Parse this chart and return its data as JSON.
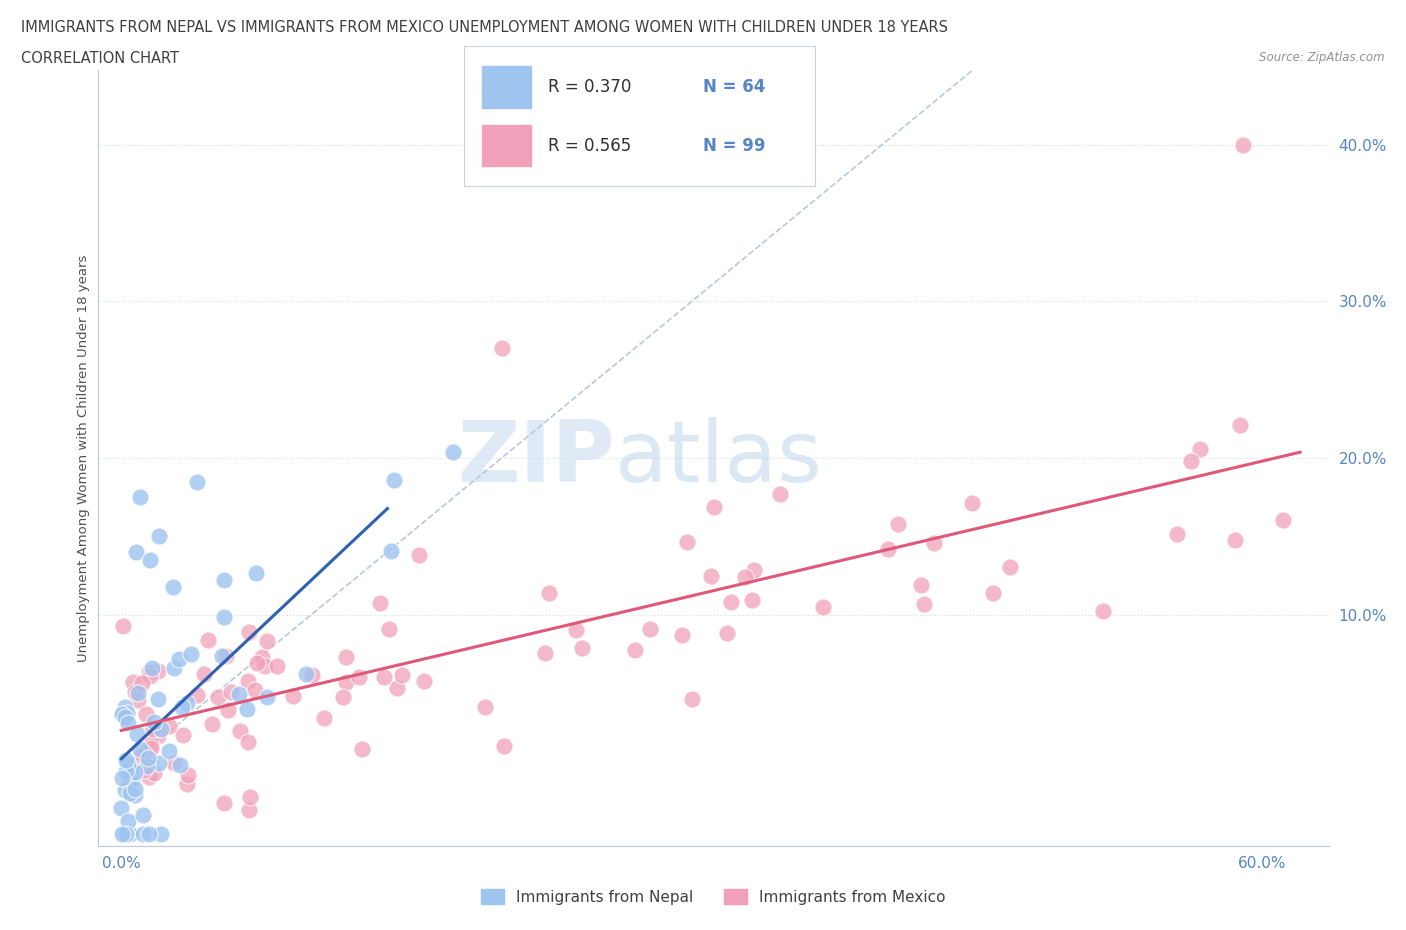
{
  "title_line1": "IMMIGRANTS FROM NEPAL VS IMMIGRANTS FROM MEXICO UNEMPLOYMENT AMONG WOMEN WITH CHILDREN UNDER 18 YEARS",
  "title_line2": "CORRELATION CHART",
  "source": "Source: ZipAtlas.com",
  "ylabel": "Unemployment Among Women with Children Under 18 years",
  "watermark_zip": "ZIP",
  "watermark_atlas": "atlas",
  "legend_nepal_R": "R = 0.370",
  "legend_nepal_N": "N = 64",
  "legend_mexico_R": "R = 0.565",
  "legend_mexico_N": "N = 99",
  "grid_color": "#d4dce8",
  "background_color": "#ffffff",
  "title_color": "#404040",
  "axis_label_color": "#5585c5",
  "nepal_scatter_color": "#9ec4f0",
  "mexico_scatter_color": "#f0a0b8",
  "nepal_trend_color": "#3060b0",
  "mexico_trend_color": "#e05878",
  "dashed_line_color": "#b8c8dc",
  "legend_text_color": "#5585c5",
  "legend_box_bg": "#ffffff",
  "legend_box_border": "#c8d4e4",
  "source_color": "#909090",
  "bottom_legend_text_color": "#404040"
}
